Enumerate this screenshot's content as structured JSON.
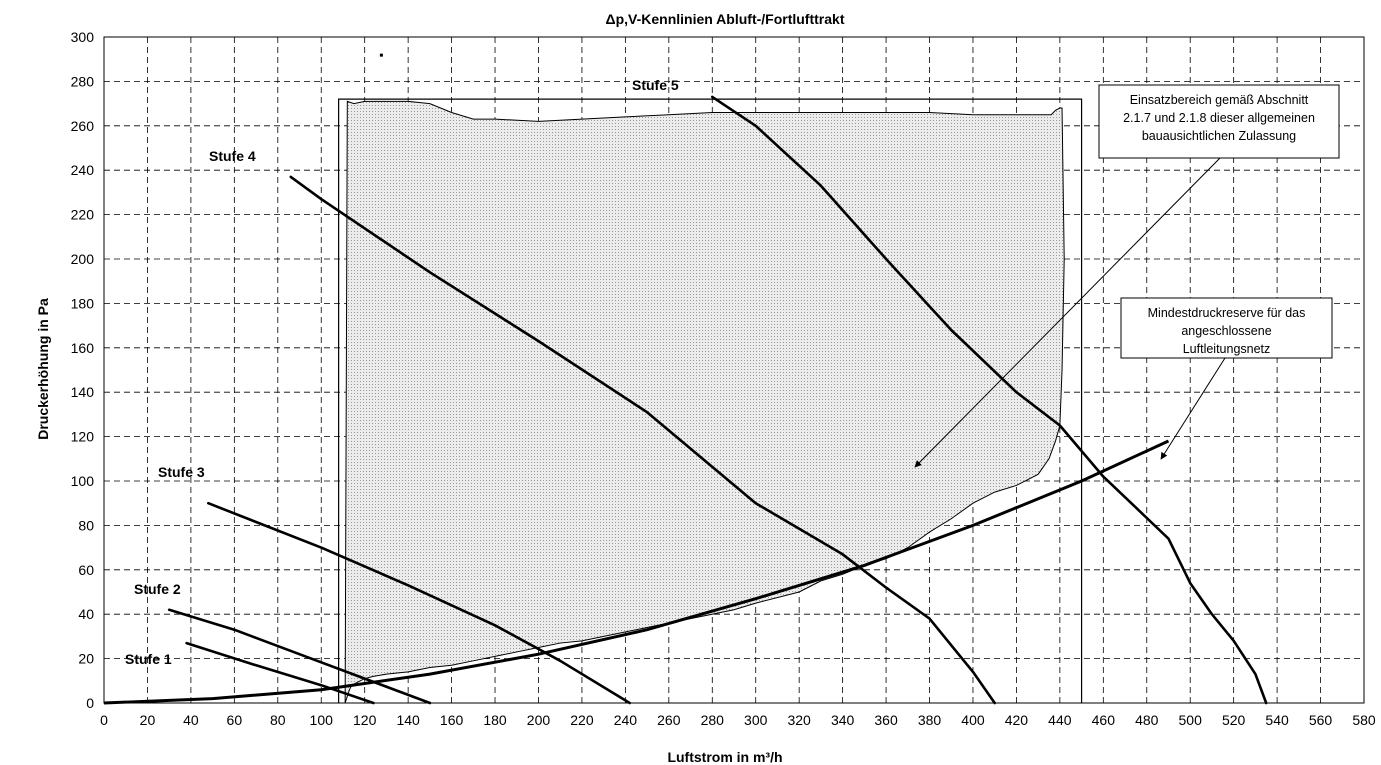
{
  "chart_data": {
    "type": "line",
    "title": "Δp,V-Kennlinien Abluft-/Fortlufttrakt",
    "xlabel": "Luftstrom in m³/h",
    "ylabel": "Druckerhöhung in Pa",
    "xlim": [
      0,
      580
    ],
    "ylim": [
      0,
      300
    ],
    "xticks": [
      "0",
      "20",
      "40",
      "60",
      "80",
      "100",
      "120",
      "140",
      "160",
      "180",
      "200",
      "220",
      "240",
      "260",
      "280",
      "300",
      "320",
      "340",
      "360",
      "380",
      "400",
      "420",
      "440",
      "460",
      "480",
      "500",
      "520",
      "540",
      "560",
      "580"
    ],
    "yticks": [
      "0",
      "20",
      "40",
      "60",
      "80",
      "100",
      "120",
      "140",
      "160",
      "180",
      "200",
      "220",
      "240",
      "260",
      "280",
      "300"
    ],
    "grid": true,
    "series": [
      {
        "name": "Stufe 1",
        "x": [
          38,
          70,
          100,
          124
        ],
        "y": [
          27,
          17,
          8,
          0
        ]
      },
      {
        "name": "Stufe 2",
        "x": [
          30,
          60,
          90,
          120,
          150
        ],
        "y": [
          42,
          33,
          22,
          11,
          0
        ]
      },
      {
        "name": "Stufe 3",
        "x": [
          48,
          100,
          140,
          180,
          210,
          242
        ],
        "y": [
          90,
          70,
          53,
          35,
          19,
          0
        ]
      },
      {
        "name": "Stufe 4",
        "x": [
          86,
          100,
          150,
          200,
          250,
          300,
          340,
          360,
          380,
          400,
          410
        ],
        "y": [
          237,
          227,
          194,
          163,
          131,
          90,
          67,
          52,
          38,
          14,
          0
        ]
      },
      {
        "name": "Stufe 5",
        "x": [
          280,
          300,
          330,
          360,
          390,
          420,
          440,
          460,
          475,
          490,
          500,
          510,
          520,
          530,
          535
        ],
        "y": [
          273,
          260,
          233,
          200,
          168,
          140,
          125,
          102,
          88,
          74,
          54,
          40,
          28,
          13,
          0
        ]
      },
      {
        "name": "Mindestdruckreserve",
        "x": [
          0,
          50,
          100,
          150,
          200,
          250,
          300,
          350,
          400,
          450,
          490
        ],
        "y": [
          0,
          2,
          6,
          13,
          22,
          33,
          47,
          62,
          80,
          100,
          118
        ]
      }
    ],
    "operating_area": {
      "x": [
        111,
        112,
        113,
        114,
        116,
        118,
        120,
        124,
        130,
        140,
        150,
        160,
        170,
        180,
        190,
        200,
        210,
        220,
        230,
        250,
        270,
        290,
        300,
        320,
        330,
        340,
        350,
        360,
        370,
        380,
        390,
        400,
        410,
        420,
        430,
        435,
        438,
        440,
        441,
        442,
        441,
        440,
        438,
        437,
        436,
        434,
        430,
        420,
        410,
        400,
        380,
        370,
        360,
        340,
        320,
        300,
        280,
        260,
        240,
        220,
        200,
        180,
        170,
        160,
        150,
        140,
        130,
        120,
        115,
        112
      ],
      "y": [
        0,
        3,
        6,
        8,
        9,
        10,
        11,
        12,
        13,
        14,
        16,
        17,
        19,
        21,
        23,
        25,
        27,
        28,
        30,
        34,
        38,
        42,
        45,
        50,
        55,
        58,
        62,
        65,
        70,
        77,
        83,
        90,
        95,
        98,
        103,
        110,
        118,
        125,
        150,
        200,
        268,
        268,
        267,
        266,
        265,
        265,
        265,
        265,
        265,
        265,
        266,
        266,
        266,
        266,
        266,
        266,
        266,
        265,
        264,
        263,
        262,
        263,
        263,
        266,
        270,
        271,
        271,
        271,
        270,
        271
      ]
    },
    "annotations": [
      {
        "text": "Einsatzbereich gemäß Abschnitt 2.1.7 und 2.1.8 dieser allgemeinen bauausichtlichen Zulassung",
        "lines": [
          "Einsatzbereich gemäß Abschnitt",
          "2.1.7 und 2.1.8 dieser allgemeinen",
          "bauausichtlichen Zulassung"
        ]
      },
      {
        "text": "Mindestdruckreserve für das angeschlossene Luftleitungsnetz",
        "lines": [
          "Mindestdruckreserve für das",
          "angeschlossene",
          "Luftleitungsnetz"
        ]
      }
    ],
    "series_labels": [
      "Stufe 1",
      "Stufe 2",
      "Stufe 3",
      "Stufe 4",
      "Stufe 5"
    ],
    "colors": {
      "area_fill": "#e6e6e6",
      "line": "#000000",
      "grid": "#000000"
    }
  }
}
